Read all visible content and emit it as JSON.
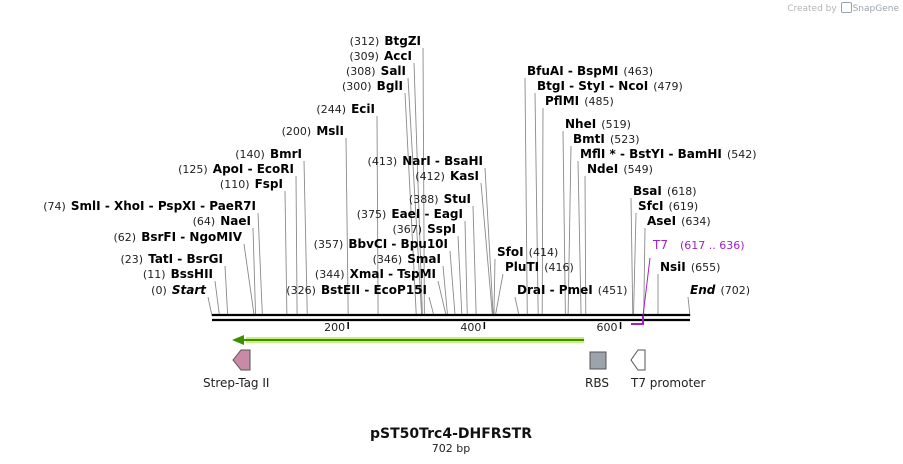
{
  "header": {
    "credit_prefix": "Created by",
    "credit_brand": "SnapGene"
  },
  "plasmid": {
    "name": "pST50Trc4-DHFRSTR",
    "length_label": "702 bp",
    "length": 702
  },
  "axis": {
    "ticks": [
      200,
      400,
      600
    ]
  },
  "colors": {
    "primer": "#a020c8",
    "arrow": "#3b8f00",
    "arrow_glow": "#c9ef7e",
    "strep": "#c98aa8",
    "rbs": "#9ba3ab",
    "t7_promoter": "#ffffff"
  },
  "sites": [
    {
      "row": 0,
      "parts": [
        {
          "pos": "(0)",
          "name": "Start",
          "italic": true
        }
      ],
      "bp": [
        0
      ]
    },
    {
      "row": 1,
      "parts": [
        {
          "pos": "(11)",
          "name": "BssHII"
        }
      ],
      "bp": [
        11
      ]
    },
    {
      "row": 2,
      "parts": [
        {
          "pos": "(23)",
          "name": "TatI"
        },
        {
          "name": "BsrGI"
        }
      ],
      "bp": [
        23
      ]
    },
    {
      "row": 3,
      "parts": [
        {
          "pos": "(62)",
          "name": "BsrFI"
        },
        {
          "name": "NgoMIV"
        }
      ],
      "bp": [
        62
      ]
    },
    {
      "row": 4,
      "parts": [
        {
          "pos": "(64)",
          "name": "NaeI"
        }
      ],
      "bp": [
        64
      ]
    },
    {
      "row": 5,
      "parts": [
        {
          "pos": "(74)",
          "name": "SmlI"
        },
        {
          "name": "XhoI"
        },
        {
          "name": "PspXI"
        },
        {
          "name": "PaeR7I"
        }
      ],
      "bp": [
        74
      ]
    },
    {
      "row": 6,
      "parts": [
        {
          "pos": "(110)",
          "name": "FspI"
        }
      ],
      "bp": [
        110
      ]
    },
    {
      "row": 7,
      "parts": [
        {
          "pos": "(125)",
          "name": "ApoI"
        },
        {
          "name": "EcoRI"
        }
      ],
      "bp": [
        125
      ]
    },
    {
      "row": 8,
      "parts": [
        {
          "pos": "(140)",
          "name": "BmrI"
        }
      ],
      "bp": [
        140
      ]
    },
    {
      "row": 9,
      "parts": [
        {
          "pos": "(200)",
          "name": "MslI"
        }
      ],
      "bp": [
        200
      ]
    },
    {
      "row": 10,
      "parts": [
        {
          "pos": "(244)",
          "name": "EciI"
        }
      ],
      "bp": [
        244
      ]
    },
    {
      "row": 11,
      "parts": [
        {
          "pos": "(300)",
          "name": "BglI"
        }
      ],
      "bp": [
        300
      ]
    },
    {
      "row": 12,
      "parts": [
        {
          "pos": "(308)",
          "name": "SalI"
        }
      ],
      "bp": [
        308
      ]
    },
    {
      "row": 13,
      "parts": [
        {
          "pos": "(309)",
          "name": "AccI"
        }
      ],
      "bp": [
        309
      ]
    },
    {
      "row": 14,
      "parts": [
        {
          "pos": "(312)",
          "name": "BtgZI"
        }
      ],
      "bp": [
        312
      ]
    },
    {
      "row": 15,
      "parts": [
        {
          "pos": "(326)",
          "name": "BstEII"
        },
        {
          "name": "EcoP15I"
        }
      ],
      "bp": [
        326
      ]
    },
    {
      "row": 16,
      "parts": [
        {
          "pos": "(344)",
          "name": "XmaI"
        },
        {
          "name": "TspMI"
        }
      ],
      "bp": [
        344
      ]
    },
    {
      "row": 17,
      "parts": [
        {
          "pos": "(346)",
          "name": "SmaI"
        }
      ],
      "bp": [
        346
      ]
    },
    {
      "row": 18,
      "parts": [
        {
          "pos": "(357)",
          "name": "BbvCI"
        },
        {
          "name": "Bpu10I"
        }
      ],
      "bp": [
        357
      ]
    },
    {
      "row": 19,
      "parts": [
        {
          "pos": "(367)",
          "name": "SspI"
        }
      ],
      "bp": [
        367
      ]
    },
    {
      "row": 20,
      "parts": [
        {
          "pos": "(375)",
          "name": "EaeI"
        },
        {
          "name": "EagI"
        }
      ],
      "bp": [
        375
      ]
    },
    {
      "row": 21,
      "parts": [
        {
          "pos": "(388)",
          "name": "StuI"
        }
      ],
      "bp": [
        388
      ]
    },
    {
      "row": 22,
      "parts": [
        {
          "pos": "(412)",
          "name": "KasI"
        }
      ],
      "bp": [
        412
      ]
    },
    {
      "row": 23,
      "parts": [
        {
          "pos": "(413)",
          "name": "NarI"
        },
        {
          "name": "BsaHI"
        }
      ],
      "bp": [
        413
      ]
    },
    {
      "row": 24,
      "parts": [
        {
          "name": "SfoI"
        },
        {
          "pos": "(414)"
        }
      ],
      "bp": [
        414
      ]
    },
    {
      "row": 25,
      "parts": [
        {
          "name": "PluTI"
        },
        {
          "pos": "(416)"
        }
      ],
      "bp": [
        416
      ]
    },
    {
      "row": 26,
      "parts": [
        {
          "name": "DraI"
        },
        {
          "name": "PmeI"
        },
        {
          "pos": "(451)"
        }
      ],
      "bp": [
        451
      ]
    },
    {
      "row": 27,
      "parts": [
        {
          "name": "BfuAI"
        },
        {
          "name": "BspMI"
        },
        {
          "pos": "(463)"
        }
      ],
      "bp": [
        463
      ]
    },
    {
      "row": 28,
      "parts": [
        {
          "name": "BtgI"
        },
        {
          "name": "StyI"
        },
        {
          "name": "NcoI"
        },
        {
          "pos": "(479)"
        }
      ],
      "bp": [
        479
      ]
    },
    {
      "row": 29,
      "parts": [
        {
          "name": "PflMI"
        },
        {
          "pos": "(485)"
        }
      ],
      "bp": [
        485
      ]
    },
    {
      "row": 30,
      "parts": [
        {
          "name": "NheI"
        },
        {
          "pos": "(519)"
        }
      ],
      "bp": [
        519
      ]
    },
    {
      "row": 31,
      "parts": [
        {
          "name": "BmtI"
        },
        {
          "pos": "(523)"
        }
      ],
      "bp": [
        523
      ]
    },
    {
      "row": 32,
      "parts": [
        {
          "name": "MflI *"
        },
        {
          "name": "BstYI"
        },
        {
          "name": "BamHI"
        },
        {
          "pos": "(542)"
        }
      ],
      "bp": [
        542
      ]
    },
    {
      "row": 33,
      "parts": [
        {
          "name": "NdeI"
        },
        {
          "pos": "(549)"
        }
      ],
      "bp": [
        549
      ]
    },
    {
      "row": 34,
      "parts": [
        {
          "name": "BsaI"
        },
        {
          "pos": "(618)"
        }
      ],
      "bp": [
        618
      ]
    },
    {
      "row": 35,
      "parts": [
        {
          "name": "SfcI"
        },
        {
          "pos": "(619)"
        }
      ],
      "bp": [
        619
      ]
    },
    {
      "row": 36,
      "parts": [
        {
          "name": "AseI"
        },
        {
          "pos": "(634)"
        }
      ],
      "bp": [
        634
      ]
    },
    {
      "row": 37,
      "parts": [
        {
          "name": "NsiI"
        },
        {
          "pos": "(655)"
        }
      ],
      "bp": [
        655
      ]
    },
    {
      "row": 38,
      "parts": [
        {
          "name": "End",
          "italic": true
        },
        {
          "pos": "(702)"
        }
      ],
      "bp": [
        702
      ]
    }
  ],
  "primer": {
    "name": "T7",
    "range": "(617 .. 636)"
  },
  "features": [
    {
      "name": "Strep-Tag II",
      "shape": "pentagon-left"
    },
    {
      "name": "RBS",
      "shape": "square"
    },
    {
      "name": "T7 promoter",
      "shape": "pentagon-left-outline"
    }
  ]
}
